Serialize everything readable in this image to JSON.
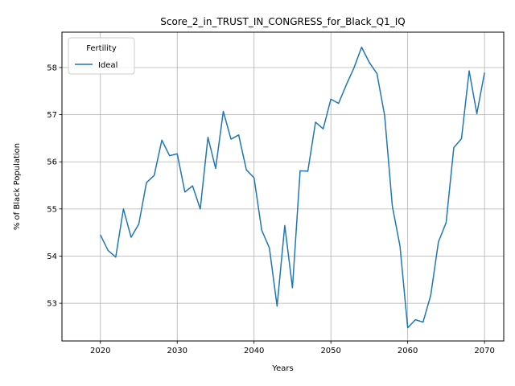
{
  "chart_data": {
    "type": "line",
    "title": "Score_2_in_TRUST_IN_CONGRESS_for_Black_Q1_IQ",
    "xlabel": "Years",
    "ylabel": "% of Black Population",
    "xlim": [
      2015,
      2072.5
    ],
    "ylim": [
      52.2,
      58.75
    ],
    "xticks": [
      2020,
      2030,
      2040,
      2050,
      2060,
      2070
    ],
    "yticks": [
      53,
      54,
      55,
      56,
      57,
      58
    ],
    "grid": true,
    "legend": {
      "title": "Fertility",
      "placement": "top-left"
    },
    "series": [
      {
        "name": "Ideal",
        "color": "#1f77b4",
        "x": [
          2020,
          2021,
          2022,
          2023,
          2024,
          2025,
          2026,
          2027,
          2028,
          2029,
          2030,
          2031,
          2032,
          2033,
          2034,
          2035,
          2036,
          2037,
          2038,
          2039,
          2040,
          2041,
          2042,
          2043,
          2044,
          2045,
          2046,
          2047,
          2048,
          2049,
          2050,
          2051,
          2052,
          2053,
          2054,
          2055,
          2056,
          2057,
          2058,
          2059,
          2060,
          2061,
          2062,
          2063,
          2064,
          2065,
          2066,
          2067,
          2068,
          2069,
          2070
        ],
        "values": [
          54.45,
          54.12,
          53.98,
          55.0,
          54.4,
          54.68,
          55.56,
          55.71,
          56.46,
          56.13,
          56.17,
          55.36,
          55.49,
          55.0,
          56.52,
          55.86,
          57.07,
          56.48,
          56.57,
          55.83,
          55.66,
          54.55,
          54.17,
          52.94,
          54.65,
          53.33,
          55.81,
          55.8,
          56.84,
          56.7,
          57.33,
          57.24,
          57.63,
          57.99,
          58.43,
          58.11,
          57.87,
          56.98,
          55.06,
          54.21,
          52.48,
          52.65,
          52.6,
          53.17,
          54.3,
          54.71,
          56.3,
          56.49,
          57.93,
          57.02,
          57.89
        ]
      }
    ]
  }
}
